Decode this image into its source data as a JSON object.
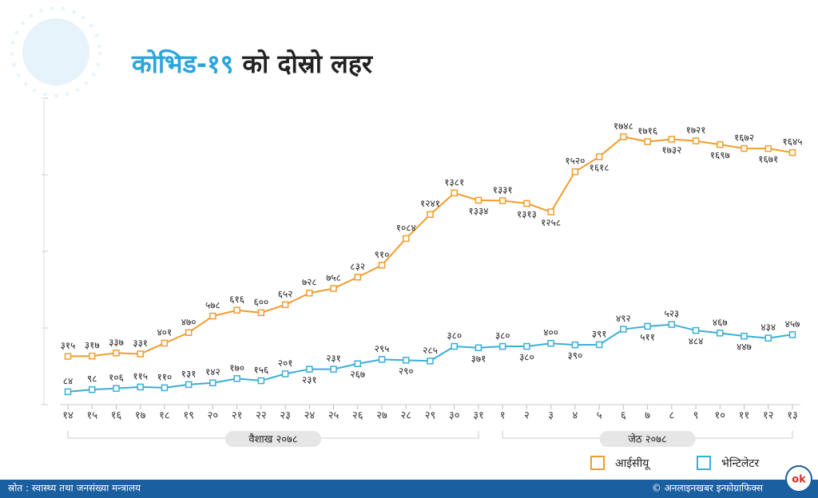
{
  "chart_data": {
    "type": "line",
    "title": {
      "highlight": "कोभिड-१९",
      "rest": "को दोस्रो लहर"
    },
    "categories": [
      "१४",
      "१५",
      "१६",
      "१७",
      "१८",
      "१९",
      "२०",
      "२१",
      "२२",
      "२३",
      "२४",
      "२५",
      "२६",
      "२७",
      "२८",
      "२९",
      "३०",
      "३१",
      "१",
      "२",
      "३",
      "४",
      "५",
      "६",
      "७",
      "८",
      "९",
      "१०",
      "११",
      "१२",
      "१३"
    ],
    "groups": [
      "वैशाख २०७८",
      "जेठ २०७८"
    ],
    "series": [
      {
        "name": "आईसीयू",
        "color": "#f39c2c",
        "values": [
          315,
          317,
          337,
          331,
          401,
          470,
          578,
          616,
          600,
          652,
          728,
          758,
          832,
          910,
          1084,
          1241,
          1381,
          1334,
          1331,
          1313,
          1258,
          1520,
          1618,
          1748,
          1716,
          1732,
          1721,
          1697,
          1672,
          1671,
          1645
        ],
        "value_labels": [
          "३१५",
          "३१७",
          "३३७",
          "३३१",
          "४०१",
          "४७०",
          "५७८",
          "६१६",
          "६००",
          "६५२",
          "७२८",
          "७५८",
          "८३२",
          "९१०",
          "१०८४",
          "१२४१",
          "१३८१",
          "१३३४",
          "१३३१",
          "१३१३",
          "१२५८",
          "१५२०",
          "१६१८",
          "१७४८",
          "१७१६",
          "१७३२",
          "१७२१",
          "१६९७",
          "१६७२",
          "१६७१",
          "१६४५"
        ]
      },
      {
        "name": "भेन्टिलेटर",
        "color": "#3aaed8",
        "values": [
          84,
          98,
          106,
          115,
          110,
          131,
          142,
          170,
          156,
          201,
          231,
          231,
          267,
          295,
          290,
          285,
          380,
          371,
          380,
          380,
          400,
          390,
          391,
          492,
          511,
          523,
          484,
          467,
          447,
          434,
          457
        ],
        "value_labels": [
          "८४",
          "९८",
          "१०६",
          "११५",
          "११०",
          "१३१",
          "१४२",
          "१७०",
          "१५६",
          "२०१",
          "२३१",
          "२३१",
          "२६७",
          "२९५",
          "२९०",
          "२८५",
          "३८०",
          "३७१",
          "३८०",
          "३८०",
          "४००",
          "३९०",
          "३९१",
          "४९२",
          "५११",
          "५२३",
          "४८४",
          "४६७",
          "४४७",
          "४३४",
          "४५७"
        ]
      }
    ],
    "ylim": [
      0,
      2000
    ],
    "yticks": [
      0,
      500,
      1000,
      1500,
      2000
    ],
    "source": "स्रोत : स्वास्थ्य तथा जनसंख्या मन्त्रालय",
    "credit": "© अनलाइनखबर इन्फोग्राफिक्स",
    "logo": "ok"
  }
}
